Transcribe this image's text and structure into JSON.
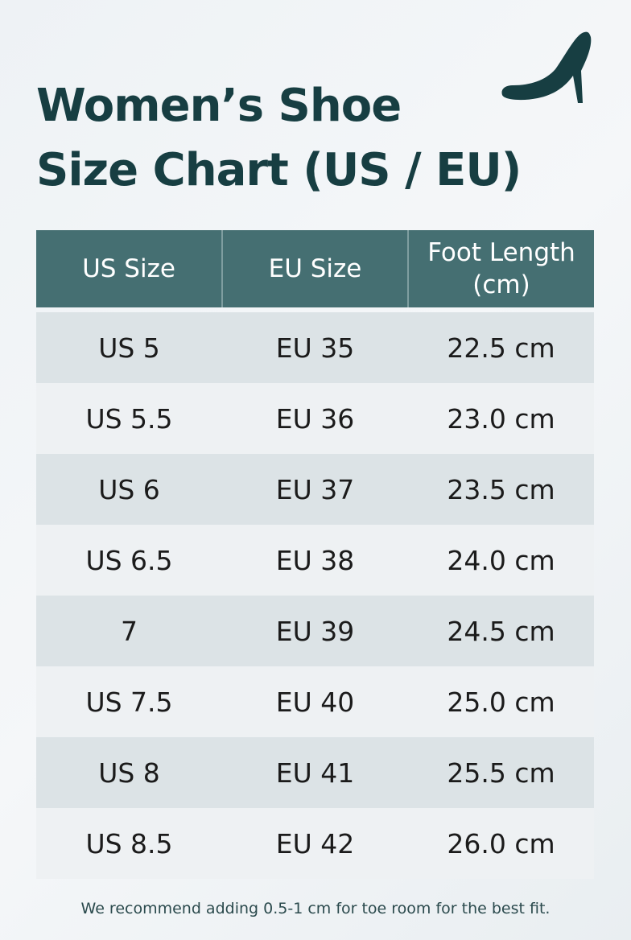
{
  "header": {
    "title_lines": [
      "Women’s Shoe",
      "Size Chart (US / EU)"
    ]
  },
  "table": {
    "columns": [
      "US Size",
      "EU Size",
      "Foot Length (cm)"
    ],
    "rows": [
      [
        "US 5",
        "EU 35",
        "22.5 cm"
      ],
      [
        "US 5.5",
        "EU 36",
        "23.0 cm"
      ],
      [
        "US 6",
        "EU 37",
        "23.5 cm"
      ],
      [
        "US 6.5",
        "EU 38",
        "24.0 cm"
      ],
      [
        "7",
        "EU 39",
        "24.5 cm"
      ],
      [
        "US 7.5",
        "EU 40",
        "25.0 cm"
      ],
      [
        "US 8",
        "EU 41",
        "25.5 cm"
      ],
      [
        "US 8.5",
        "EU 42",
        "26.0 cm"
      ]
    ]
  },
  "footnote": "We recommend adding 0.5-1 cm for toe room for the best fit."
}
